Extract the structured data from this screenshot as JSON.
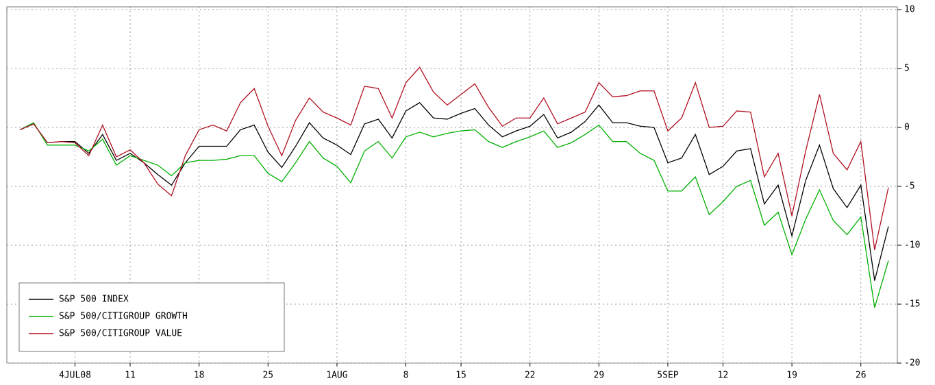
{
  "chart_data": {
    "type": "line",
    "categories": [
      null,
      null,
      null,
      null,
      "4JUL08",
      null,
      null,
      null,
      "11",
      null,
      null,
      null,
      null,
      "18",
      null,
      null,
      null,
      null,
      "25",
      null,
      null,
      null,
      null,
      "1AUG",
      null,
      null,
      null,
      null,
      "8",
      null,
      null,
      null,
      "15",
      null,
      null,
      null,
      null,
      "22",
      null,
      null,
      null,
      null,
      "29",
      null,
      null,
      null,
      null,
      "5SEP",
      null,
      null,
      null,
      "12",
      null,
      null,
      null,
      null,
      "19",
      null,
      null,
      null,
      null,
      "26",
      null,
      null
    ],
    "series": [
      {
        "name": "S&P 500 INDEX",
        "color": "#000000",
        "values": [
          -0.2,
          0.3,
          -1.3,
          -1.2,
          -1.2,
          -2.2,
          -0.6,
          -2.8,
          -2.2,
          -3.0,
          -4.0,
          -4.9,
          -3.0,
          -1.6,
          -1.6,
          -1.6,
          -0.2,
          0.2,
          -2.1,
          -3.4,
          -1.6,
          0.4,
          -0.9,
          -1.5,
          -2.3,
          0.3,
          0.7,
          -0.9,
          1.4,
          2.1,
          0.8,
          0.7,
          1.2,
          1.6,
          0.2,
          -0.8,
          -0.3,
          0.1,
          1.1,
          -0.9,
          -0.4,
          0.5,
          1.9,
          0.4,
          0.4,
          0.1,
          0.0,
          -3.0,
          -2.6,
          -0.6,
          -4.0,
          -3.3,
          -2.0,
          -1.8,
          -6.5,
          -4.9,
          -9.2,
          -4.5,
          -1.5,
          -5.2,
          -6.8,
          -4.9,
          -13.0,
          -8.4
        ]
      },
      {
        "name": "S&P 500/CITIGROUP GROWTH",
        "color": "#00b000",
        "values": [
          -0.2,
          0.4,
          -1.5,
          -1.5,
          -1.5,
          -2.0,
          -1.0,
          -3.2,
          -2.4,
          -2.8,
          -3.2,
          -4.1,
          -3.0,
          -2.8,
          -2.8,
          -2.7,
          -2.4,
          -2.4,
          -3.9,
          -4.6,
          -3.0,
          -1.2,
          -2.6,
          -3.3,
          -4.7,
          -2.0,
          -1.2,
          -2.6,
          -0.8,
          -0.4,
          -0.8,
          -0.5,
          -0.3,
          -0.2,
          -1.2,
          -1.7,
          -1.2,
          -0.8,
          -0.3,
          -1.7,
          -1.3,
          -0.6,
          0.2,
          -1.2,
          -1.2,
          -2.2,
          -2.8,
          -5.4,
          -5.4,
          -4.2,
          -7.4,
          -6.3,
          -5.0,
          -4.5,
          -8.3,
          -7.2,
          -10.8,
          -7.8,
          -5.3,
          -7.9,
          -9.1,
          -7.6,
          -15.3,
          -11.3
        ]
      },
      {
        "name": "S&P 500/CITIGROUP VALUE",
        "color": "#b01020",
        "values": [
          -0.2,
          0.3,
          -1.3,
          -1.2,
          -1.3,
          -2.4,
          0.2,
          -2.5,
          -1.9,
          -3.0,
          -4.8,
          -5.8,
          -2.4,
          -0.2,
          0.2,
          -0.3,
          2.1,
          3.3,
          0.1,
          -2.4,
          0.6,
          2.5,
          1.3,
          0.8,
          0.2,
          3.5,
          3.3,
          0.8,
          3.8,
          5.1,
          3.0,
          1.9,
          2.8,
          3.7,
          1.7,
          0.1,
          0.8,
          0.8,
          2.5,
          0.3,
          0.8,
          1.3,
          3.8,
          2.6,
          2.7,
          3.1,
          3.1,
          -0.3,
          0.8,
          3.8,
          0.0,
          0.1,
          1.4,
          1.3,
          -4.2,
          -2.2,
          -7.5,
          -2.0,
          2.8,
          -2.2,
          -3.6,
          -1.2,
          -10.4,
          -5.1
        ]
      }
    ],
    "ylim": [
      -20,
      10
    ],
    "yticks": [
      -20,
      -15,
      -10,
      -5,
      0,
      5,
      10
    ],
    "grid": true,
    "legend": "lower left"
  }
}
